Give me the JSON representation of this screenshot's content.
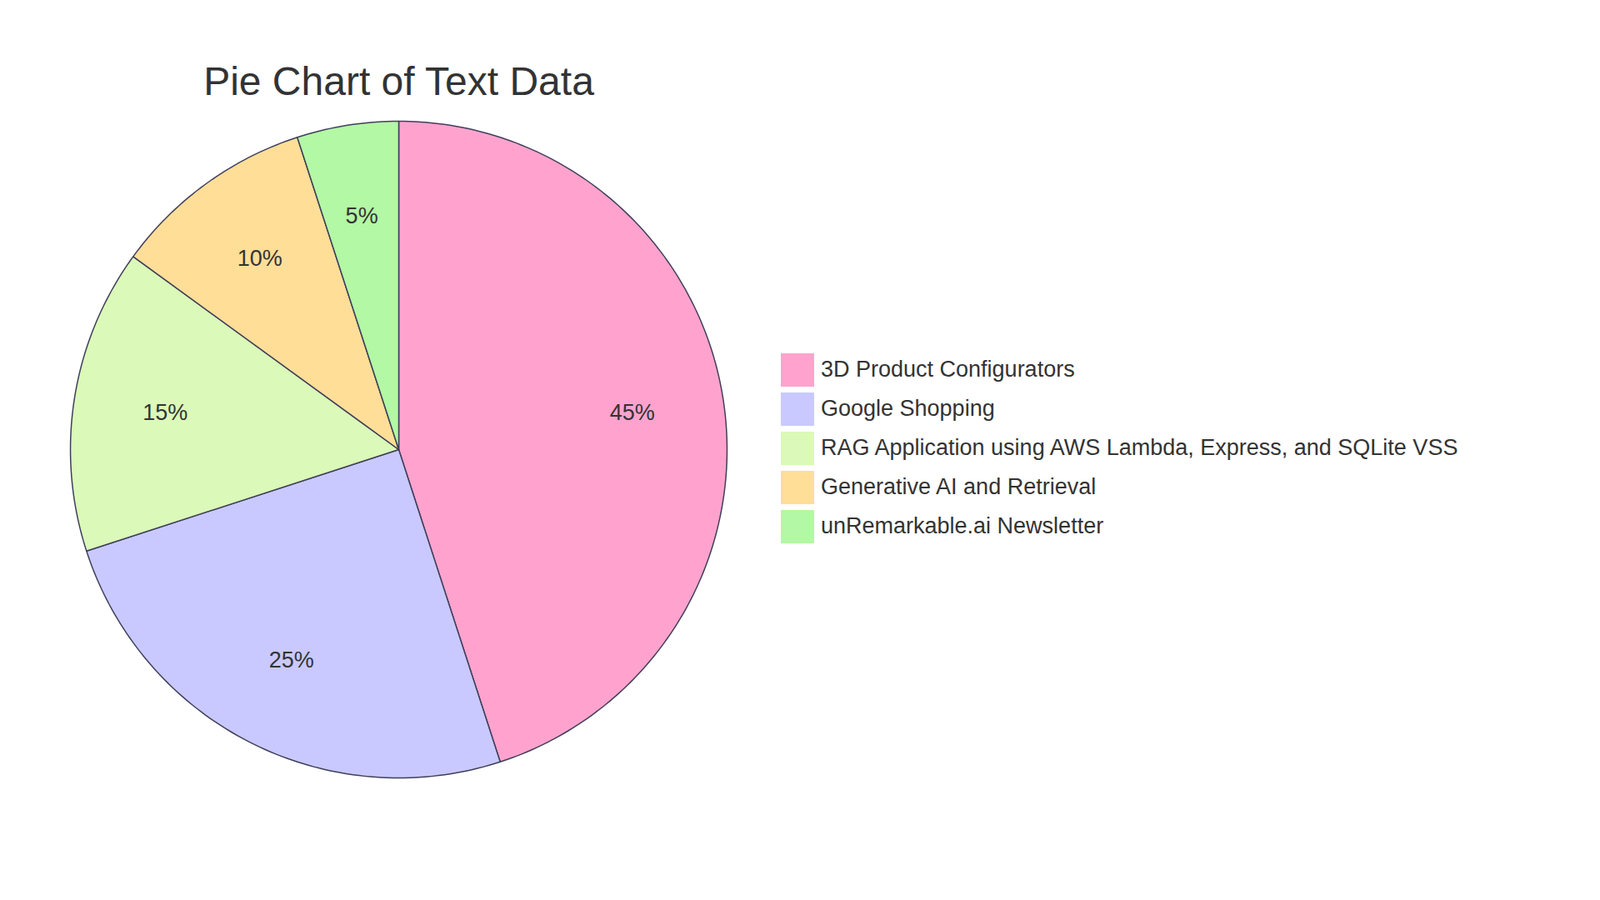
{
  "chart_data": {
    "type": "pie",
    "title": "Pie Chart of Text Data",
    "categories": [
      "3D Product Configurators",
      "Google Shopping",
      "RAG Application using AWS Lambda, Express, and SQLite VSS",
      "Generative AI and Retrieval",
      "unRemarkable.ai Newsletter"
    ],
    "values": [
      45,
      25,
      15,
      10,
      5
    ],
    "value_labels": [
      "45%",
      "25%",
      "15%",
      "10%",
      "5%"
    ],
    "colors": [
      "#ffa3ce",
      "#c9c9ff",
      "#dbf9b8",
      "#ffde98",
      "#b3f8a4"
    ],
    "data_labels": true,
    "legend": "right"
  }
}
